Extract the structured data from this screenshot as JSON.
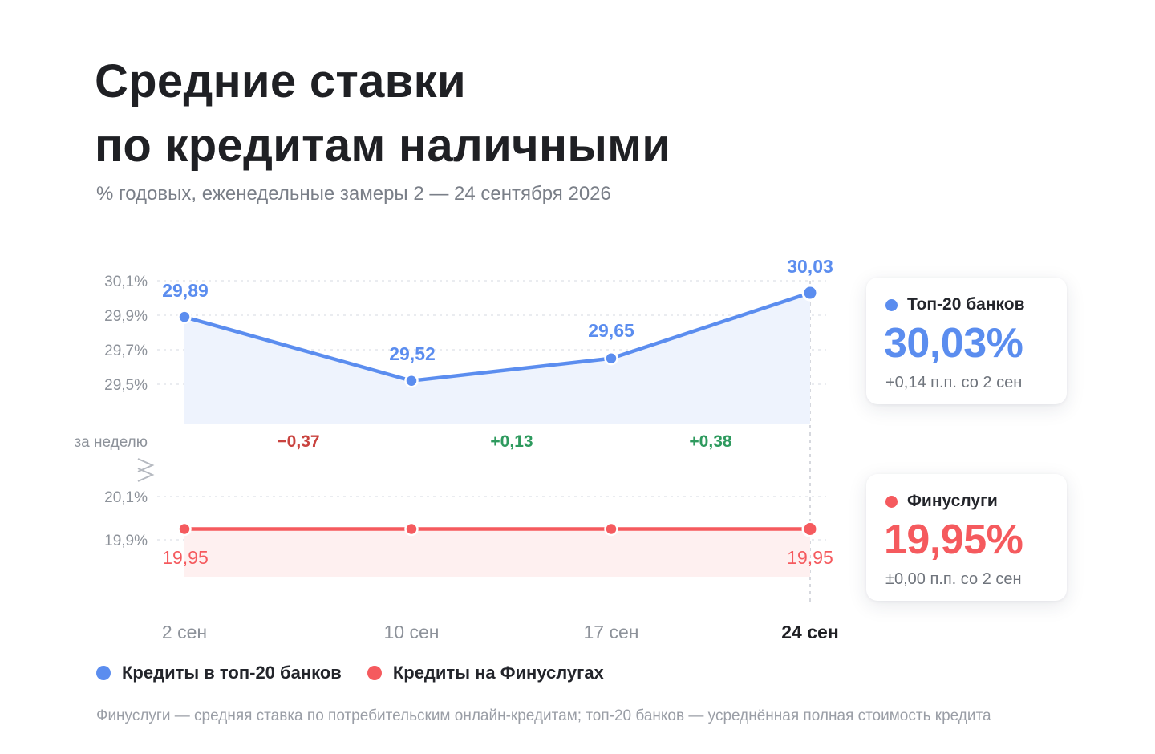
{
  "title_line1": "Средние ставки",
  "title_line2": "по кредитам наличными",
  "subtitle": "% годовых, еженедельные замеры 2 — 24 сентября 2026",
  "colors": {
    "blue": "#5b8def",
    "red": "#f55a5e",
    "green": "#2e9a5e",
    "negative": "#c9433f"
  },
  "chart_data": {
    "type": "line",
    "x": [
      "2 сен",
      "10 сен",
      "17 сен",
      "24 сен"
    ],
    "series": [
      {
        "name": "Кредиты в топ-20 банков",
        "values": [
          29.89,
          29.52,
          29.65,
          30.03
        ],
        "value_labels": [
          "29,89",
          "29,52",
          "29,65",
          "30,03"
        ]
      },
      {
        "name": "Кредиты на Финуслугах",
        "values": [
          19.95,
          19.95,
          19.95,
          19.95
        ],
        "value_labels": [
          "19,95",
          "",
          "",
          "19,95"
        ]
      }
    ],
    "top_ticks": [
      "30,1%",
      "29,9%",
      "29,7%",
      "29,5%"
    ],
    "top_tick_values": [
      30.1,
      29.9,
      29.7,
      29.5
    ],
    "top_ylim": [
      29.5,
      30.1
    ],
    "bottom_ticks": [
      "20,1%",
      "19,9%"
    ],
    "bottom_tick_values": [
      20.1,
      19.9
    ],
    "bottom_ylim": [
      19.9,
      20.1
    ],
    "weekly_label": "за неделю",
    "weekly_changes": [
      "−0,37",
      "+0,13",
      "+0,38"
    ],
    "weekly_signs": [
      "negative",
      "positive",
      "positive"
    ],
    "highlight_x": "24 сен",
    "grid": true,
    "axis_break": true
  },
  "cards": {
    "top20": {
      "label": "Топ-20 банков",
      "value": "30,03%",
      "note": "+0,14 п.п. со 2 сен"
    },
    "finuslugi": {
      "label": "Финуслуги",
      "value": "19,95%",
      "note": "±0,00 п.п. со 2 сен"
    }
  },
  "legend": [
    {
      "label": "Кредиты в топ-20 банков",
      "color": "#5b8def"
    },
    {
      "label": "Кредиты на Финуслугах",
      "color": "#f55a5e"
    }
  ],
  "footnote": "Финуслуги — средняя ставка по потребительским онлайн-кредитам; топ-20 банков — усреднённая полная стоимость кредита"
}
